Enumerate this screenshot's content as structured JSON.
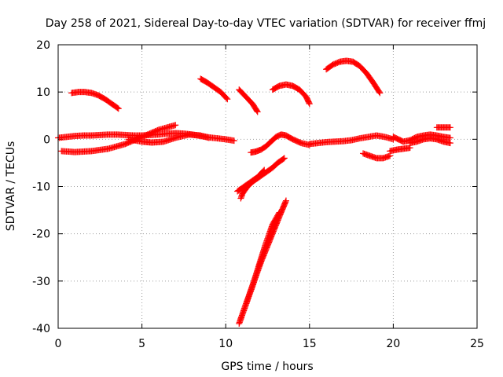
{
  "chart_data": {
    "type": "scatter",
    "title": "Day 258 of 2021, Sidereal Day-to-day VTEC variation (SDTVAR) for receiver ffmj",
    "xlabel": "GPS time / hours",
    "ylabel": "SDTVAR / TECUs",
    "xlim": [
      0,
      25
    ],
    "ylim": [
      -40,
      20
    ],
    "xticks": [
      "0",
      "5",
      "10",
      "15",
      "20",
      "25"
    ],
    "yticks": [
      "20",
      "10",
      "0",
      "-10",
      "-20",
      "-30",
      "-40"
    ],
    "grid": true,
    "marker": "+",
    "color": "#ff0000",
    "series": [
      {
        "x": [
          0.0,
          0.5,
          1.0,
          1.5,
          2.0,
          2.5,
          3.0,
          3.5,
          4.0,
          4.5,
          5.0,
          5.5,
          6.0,
          6.5,
          7.0,
          7.5,
          8.0,
          8.5,
          9.0,
          9.5,
          10.0,
          10.5
        ],
        "y": [
          0.3,
          0.5,
          0.7,
          0.8,
          0.8,
          0.9,
          1.0,
          1.0,
          0.9,
          0.8,
          0.8,
          0.9,
          1.0,
          1.2,
          1.3,
          1.2,
          1.0,
          0.7,
          0.4,
          0.2,
          0.0,
          -0.3
        ]
      },
      {
        "x": [
          0.2,
          1.0,
          2.0,
          3.0,
          4.0,
          5.0,
          6.0,
          7.0
        ],
        "y": [
          -2.5,
          -2.7,
          -2.5,
          -2.0,
          -1.0,
          0.5,
          2.0,
          3.0
        ]
      },
      {
        "x": [
          4.2,
          5.0,
          5.6,
          6.3,
          7.0,
          7.8,
          8.5,
          9.0
        ],
        "y": [
          0.0,
          -0.5,
          -0.7,
          -0.5,
          0.3,
          1.0,
          0.8,
          0.3
        ]
      },
      {
        "x": [
          0.8,
          1.2,
          1.6,
          2.0,
          2.4,
          2.8,
          3.2,
          3.6
        ],
        "y": [
          9.8,
          10.0,
          10.0,
          9.8,
          9.3,
          8.5,
          7.5,
          6.5
        ]
      },
      {
        "x": [
          8.5,
          8.9,
          9.3,
          9.7,
          10.1
        ],
        "y": [
          12.8,
          12.0,
          11.0,
          10.0,
          8.5
        ]
      },
      {
        "x": [
          10.8,
          11.2,
          11.6,
          11.9
        ],
        "y": [
          10.5,
          9.0,
          7.5,
          5.8
        ]
      },
      {
        "x": [
          10.7,
          11.1,
          11.5,
          11.9,
          12.3
        ],
        "y": [
          -11.0,
          -10.0,
          -9.0,
          -8.0,
          -6.5
        ]
      },
      {
        "x": [
          10.9,
          11.0,
          11.3,
          11.6,
          12.0,
          12.4,
          12.8,
          13.1,
          13.5
        ],
        "y": [
          -12.5,
          -11.5,
          -10.0,
          -9.0,
          -8.0,
          -7.0,
          -6.0,
          -5.0,
          -4.0
        ]
      },
      {
        "x": [
          10.8,
          11.2,
          11.6,
          12.0,
          12.4,
          12.8,
          13.2
        ],
        "y": [
          -39.0,
          -35.0,
          -31.0,
          -26.5,
          -22.0,
          -18.0,
          -15.5
        ]
      },
      {
        "x": [
          10.9,
          11.3,
          11.7,
          12.1,
          12.5,
          12.9,
          13.3,
          13.6
        ],
        "y": [
          -38.0,
          -34.0,
          -30.0,
          -26.0,
          -22.5,
          -19.0,
          -15.5,
          -13.0
        ]
      },
      {
        "x": [
          11.5,
          11.8,
          12.1,
          12.4,
          12.7,
          13.0,
          13.3,
          13.6,
          14.0,
          14.5,
          15.0
        ],
        "y": [
          -2.8,
          -2.6,
          -2.2,
          -1.5,
          -0.5,
          0.5,
          1.0,
          0.8,
          0.0,
          -0.8,
          -1.2
        ]
      },
      {
        "x": [
          12.8,
          13.2,
          13.6,
          14.0,
          14.4,
          14.8,
          15.0
        ],
        "y": [
          10.5,
          11.3,
          11.6,
          11.3,
          10.5,
          9.0,
          7.5
        ]
      },
      {
        "x": [
          15.0,
          15.5,
          16.0,
          16.5,
          17.0,
          17.5,
          18.0,
          18.5,
          19.0,
          19.5,
          20.0
        ],
        "y": [
          -1.0,
          -0.8,
          -0.6,
          -0.5,
          -0.4,
          -0.2,
          0.2,
          0.5,
          0.8,
          0.5,
          0.0
        ]
      },
      {
        "x": [
          16.0,
          16.4,
          16.8,
          17.2,
          17.6,
          18.0,
          18.4,
          18.8,
          19.2
        ],
        "y": [
          14.8,
          15.8,
          16.4,
          16.6,
          16.4,
          15.5,
          14.0,
          12.0,
          9.8
        ]
      },
      {
        "x": [
          18.2,
          18.6,
          19.0,
          19.4,
          19.8
        ],
        "y": [
          -3.0,
          -3.5,
          -4.0,
          -4.0,
          -3.5
        ]
      },
      {
        "x": [
          19.8,
          20.2,
          20.6,
          21.0
        ],
        "y": [
          -2.5,
          -2.2,
          -2.0,
          -1.8
        ]
      },
      {
        "x": [
          20.0,
          20.3,
          20.6,
          21.0,
          21.4,
          21.8,
          22.2,
          22.6,
          23.0,
          23.4
        ],
        "y": [
          0.5,
          0.0,
          -0.5,
          -0.2,
          0.5,
          0.8,
          1.0,
          0.8,
          0.5,
          0.3
        ]
      },
      {
        "x": [
          22.6,
          23.0,
          23.4
        ],
        "y": [
          2.5,
          2.5,
          2.5
        ]
      },
      {
        "x": [
          21.0,
          21.4,
          21.8,
          22.2,
          22.6,
          23.0,
          23.4
        ],
        "y": [
          -0.8,
          -0.5,
          0.0,
          0.2,
          0.0,
          -0.5,
          -0.8
        ]
      }
    ]
  }
}
